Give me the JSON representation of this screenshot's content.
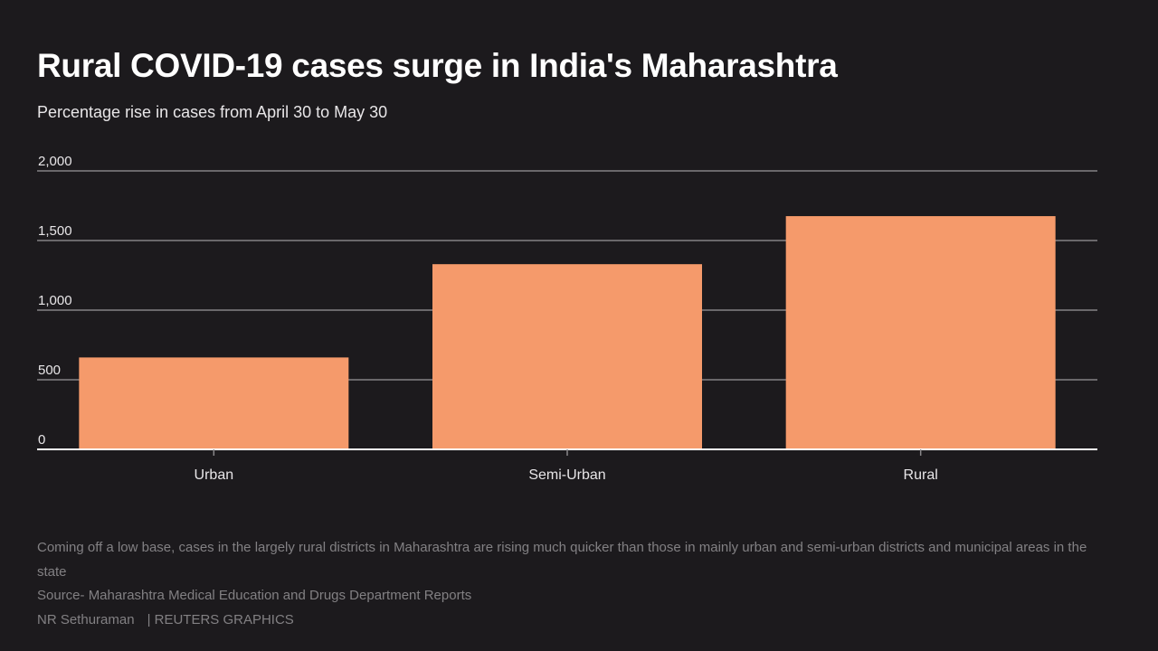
{
  "header": {
    "title": "Rural COVID-19 cases surge in India's Maharashtra",
    "subtitle": "Percentage rise in cases from April 30 to May 30"
  },
  "chart_data": {
    "type": "bar",
    "categories": [
      "Urban",
      "Semi-Urban",
      "Rural"
    ],
    "values": [
      660,
      1330,
      1675
    ],
    "ylim": [
      0,
      2000
    ],
    "yticks": [
      0,
      500,
      1000,
      1500,
      2000
    ],
    "ytick_labels": [
      "0",
      "500",
      "1,000",
      "1,500",
      "2,000"
    ],
    "xlabel": "",
    "ylabel": "",
    "grid": true,
    "legend": "none",
    "bar_color": "#f59a6b",
    "grid_color": "#6a686b",
    "baseline_color": "#ffffff"
  },
  "footer": {
    "note": "Coming off a low base, cases in the largely rural districts in Maharashtra are rising much quicker than those in mainly urban and semi-urban districts and municipal areas in the state",
    "source": "Source- Maharashtra Medical Education and Drugs Department Reports",
    "author": "NR Sethuraman",
    "agency": "| REUTERS GRAPHICS"
  },
  "colors": {
    "background": "#1c1a1d",
    "text": "#ffffff",
    "muted_text": "#828083"
  }
}
